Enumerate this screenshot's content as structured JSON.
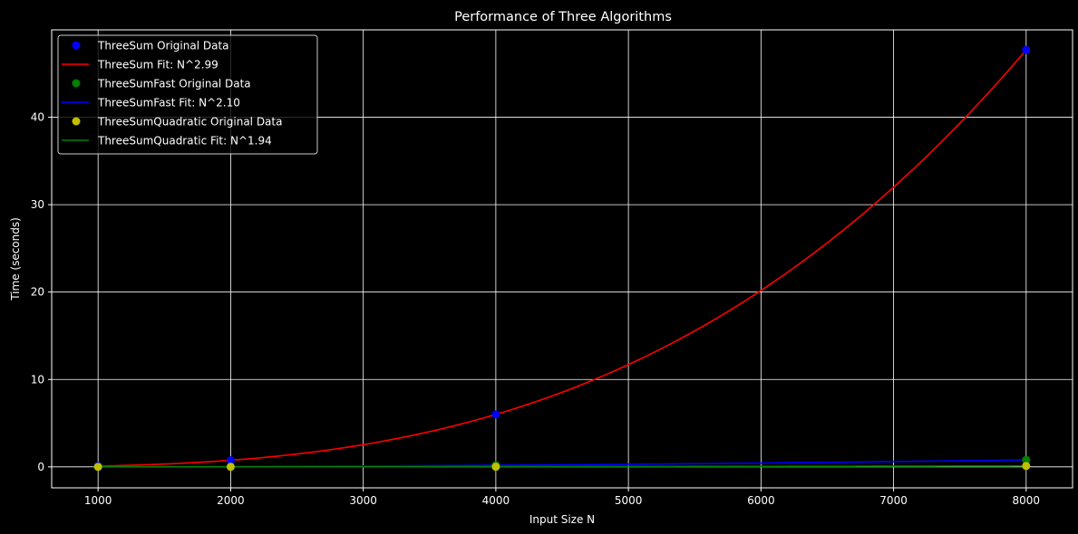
{
  "chart_data": {
    "type": "line",
    "title": "Performance of Three Algorithms",
    "xlabel": "Input Size N",
    "ylabel": "Time (seconds)",
    "xlim": [
      650,
      8350
    ],
    "ylim": [
      -2.4,
      50.0
    ],
    "xticks": [
      1000,
      2000,
      3000,
      4000,
      5000,
      6000,
      7000,
      8000
    ],
    "yticks": [
      0,
      10,
      20,
      30,
      40
    ],
    "grid": true,
    "legend_position": "top-left",
    "colors": {
      "background": "#000000",
      "foreground": "#ffffff",
      "grid": "#ffffff",
      "threesum_points": "#0000ff",
      "threesum_fit": "#ff0000",
      "threesumfast_points": "#008000",
      "threesumfast_fit": "#0000ff",
      "threesumquadratic_points": "#bfbf00",
      "threesumquadratic_fit": "#008000"
    },
    "series": [
      {
        "name": "ThreeSum Original Data",
        "kind": "scatter",
        "color": "#0000ff",
        "x": [
          1000,
          2000,
          4000,
          8000
        ],
        "y": [
          0.1,
          0.75,
          6.0,
          47.7
        ]
      },
      {
        "name": "ThreeSum Fit: N^2.99",
        "kind": "line",
        "color": "#ff0000",
        "exponent": 2.99,
        "anchor": [
          8000,
          47.7
        ]
      },
      {
        "name": "ThreeSumFast Original Data",
        "kind": "scatter",
        "color": "#008000",
        "x": [
          1000,
          2000,
          4000,
          8000
        ],
        "y": [
          0.01,
          0.04,
          0.18,
          0.8
        ]
      },
      {
        "name": "ThreeSumFast Fit: N^2.10",
        "kind": "line",
        "color": "#0000ff",
        "exponent": 2.1,
        "anchor": [
          8000,
          0.8
        ]
      },
      {
        "name": "ThreeSumQuadratic Original Data",
        "kind": "scatter",
        "color": "#bfbf00",
        "x": [
          1000,
          2000,
          4000,
          8000
        ],
        "y": [
          0.0,
          0.0,
          0.02,
          0.1
        ]
      },
      {
        "name": "ThreeSumQuadratic Fit: N^1.94",
        "kind": "line",
        "color": "#008000",
        "exponent": 1.94,
        "anchor": [
          8000,
          0.1
        ]
      }
    ]
  }
}
